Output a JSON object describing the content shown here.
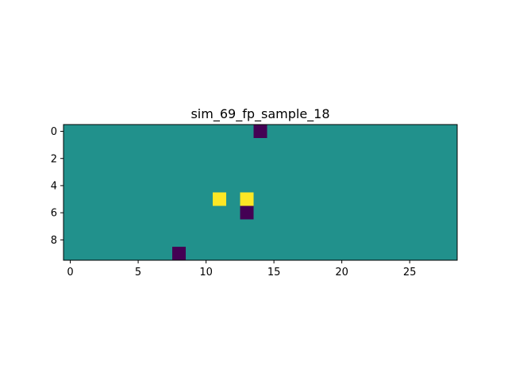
{
  "chart_data": {
    "type": "heatmap",
    "title": "sim_69_fp_sample_18",
    "xlabel": "",
    "ylabel": "",
    "rows": 10,
    "cols": 29,
    "background_value": 0,
    "cells": [
      {
        "row": 0,
        "col": 14,
        "value": -1
      },
      {
        "row": 5,
        "col": 11,
        "value": 1
      },
      {
        "row": 5,
        "col": 13,
        "value": 1
      },
      {
        "row": 6,
        "col": 13,
        "value": -1
      },
      {
        "row": 9,
        "col": 8,
        "value": -1
      }
    ],
    "xlim": [
      -0.5,
      28.5
    ],
    "ylim": [
      9.5,
      -0.5
    ],
    "x_ticks": [
      0,
      5,
      10,
      15,
      20,
      25
    ],
    "y_ticks": [
      0,
      2,
      4,
      6,
      8
    ],
    "colormap": "viridis",
    "colors": {
      "-1": "#440154",
      "0": "#21918c",
      "1": "#fde725"
    },
    "grid": false,
    "legend": "none"
  }
}
